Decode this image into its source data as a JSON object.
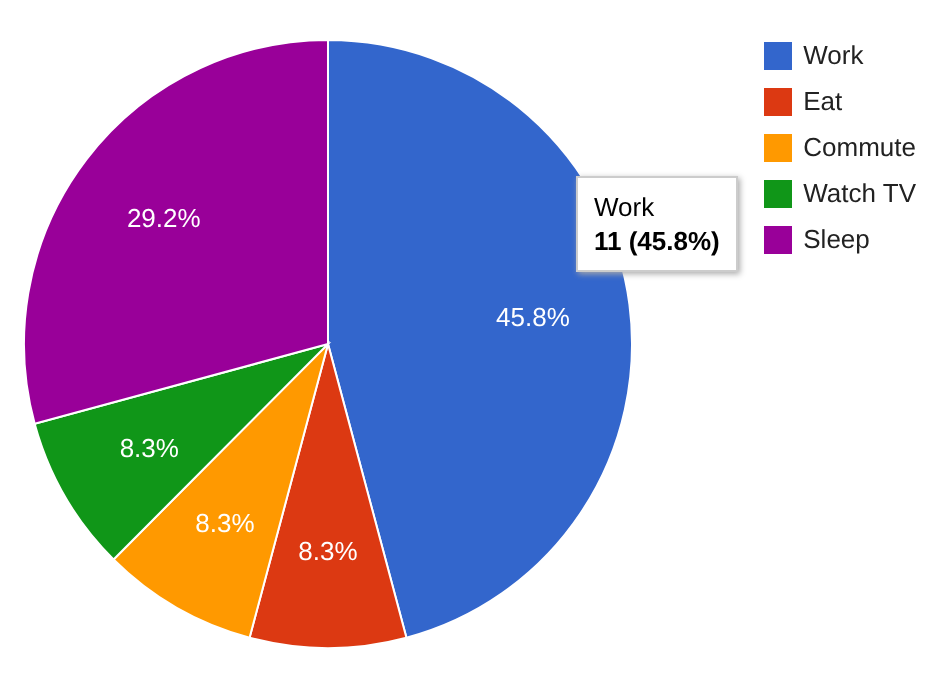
{
  "chart_data": {
    "type": "pie",
    "categories": [
      "Work",
      "Eat",
      "Commute",
      "Watch TV",
      "Sleep"
    ],
    "values": [
      45.8,
      8.3,
      8.3,
      8.3,
      29.2
    ],
    "colors": [
      "#3366cc",
      "#dc3912",
      "#ff9900",
      "#109618",
      "#990099"
    ],
    "value_labels": [
      "45.8%",
      "8.3%",
      "8.3%",
      "8.3%",
      "29.2%"
    ],
    "legend": "top right",
    "annotations": [
      "Work",
      "11 (45.8%)"
    ]
  }
}
